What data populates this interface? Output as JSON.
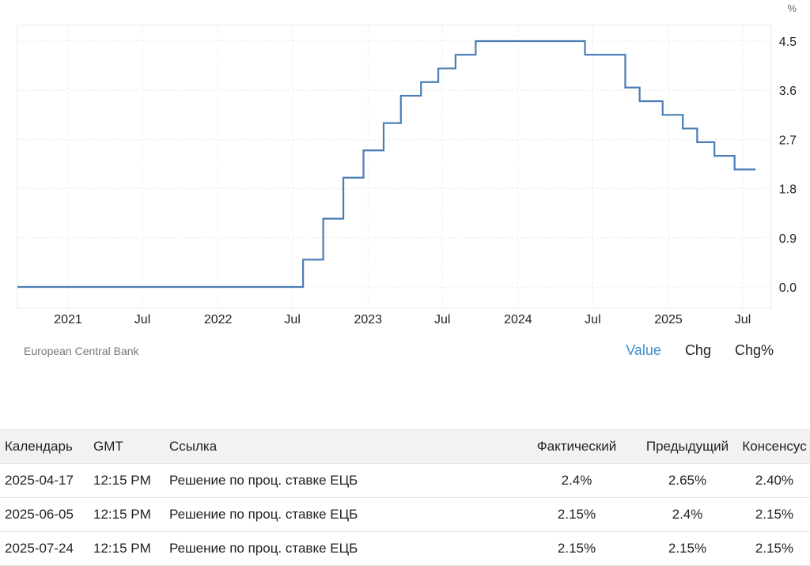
{
  "chart_data": {
    "type": "line",
    "step": true,
    "unit": "%",
    "y_ticks": [
      "4.5",
      "3.6",
      "2.7",
      "1.8",
      "0.9",
      "0.0"
    ],
    "x_ticks": [
      "2021",
      "Jul",
      "2022",
      "Jul",
      "2023",
      "Jul",
      "2024",
      "Jul",
      "2025",
      "Jul"
    ],
    "ylim": [
      -0.4,
      4.5
    ],
    "grid": true,
    "series": [
      {
        "color": "#4a7db5",
        "points": [
          {
            "x": "2020-05",
            "y": 0.0
          },
          {
            "x": "2022-07-27",
            "y": 0.5
          },
          {
            "x": "2022-09-14",
            "y": 1.25
          },
          {
            "x": "2022-11-02",
            "y": 2.0
          },
          {
            "x": "2022-12-21",
            "y": 2.5
          },
          {
            "x": "2023-02-08",
            "y": 3.0
          },
          {
            "x": "2023-03-22",
            "y": 3.5
          },
          {
            "x": "2023-05-10",
            "y": 3.75
          },
          {
            "x": "2023-06-21",
            "y": 4.0
          },
          {
            "x": "2023-08-02",
            "y": 4.25
          },
          {
            "x": "2023-09-20",
            "y": 4.5
          },
          {
            "x": "2024-06-12",
            "y": 4.25
          },
          {
            "x": "2024-09-18",
            "y": 3.65
          },
          {
            "x": "2024-10-23",
            "y": 3.4
          },
          {
            "x": "2024-12-18",
            "y": 3.15
          },
          {
            "x": "2025-02-05",
            "y": 2.9
          },
          {
            "x": "2025-03-12",
            "y": 2.65
          },
          {
            "x": "2025-04-23",
            "y": 2.4
          },
          {
            "x": "2025-06-11",
            "y": 2.15
          },
          {
            "x": "2025-08-01",
            "y": 2.15
          }
        ]
      }
    ]
  },
  "source": "European Central Bank",
  "view_buttons": [
    "Value",
    "Chg",
    "Chg%"
  ],
  "active_view": "Value",
  "table": {
    "headers": [
      "Календарь",
      "GMT",
      "Ссылка",
      "Фактический",
      "Предыдущий",
      "Консенсус"
    ],
    "rows": [
      [
        "2025-04-17",
        "12:15 PM",
        "Решение по проц. ставке ЕЦБ",
        "2.4%",
        "2.65%",
        "2.40%"
      ],
      [
        "2025-06-05",
        "12:15 PM",
        "Решение по проц. ставке ЕЦБ",
        "2.15%",
        "2.4%",
        "2.15%"
      ],
      [
        "2025-07-24",
        "12:15 PM",
        "Решение по проц. ставке ЕЦБ",
        "2.15%",
        "2.15%",
        "2.15%"
      ]
    ]
  }
}
